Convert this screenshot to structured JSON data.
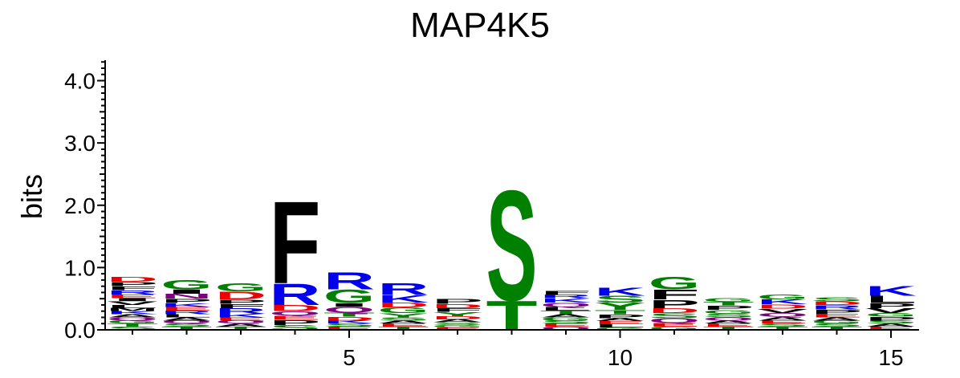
{
  "chart_data": {
    "type": "sequence-logo",
    "title": "MAP4K5",
    "ylabel": "bits",
    "ylim": [
      0,
      4.3
    ],
    "y_ticks": [
      "0.0",
      "1.0",
      "2.0",
      "3.0",
      "4.0"
    ],
    "x_ticks": [
      "5",
      "10",
      "15"
    ],
    "positions": [
      {
        "pos": 1,
        "letters": [
          [
            "S",
            0.05
          ],
          [
            "T",
            0.05
          ],
          [
            "G",
            0.05
          ],
          [
            "Q",
            0.05
          ],
          [
            "A",
            0.05
          ],
          [
            "K",
            0.05
          ],
          [
            "M",
            0.05
          ],
          [
            "L",
            0.05
          ],
          [
            "V",
            0.06
          ],
          [
            "I",
            0.05
          ],
          [
            "E",
            0.06
          ],
          [
            "R",
            0.07
          ],
          [
            "F",
            0.06
          ],
          [
            "P",
            0.07
          ],
          [
            "D",
            0.08
          ]
        ]
      },
      {
        "pos": 2,
        "letters": [
          [
            "T",
            0.05
          ],
          [
            "S",
            0.05
          ],
          [
            "Q",
            0.05
          ],
          [
            "A",
            0.05
          ],
          [
            "L",
            0.05
          ],
          [
            "R",
            0.06
          ],
          [
            "E",
            0.06
          ],
          [
            "K",
            0.06
          ],
          [
            "P",
            0.07
          ],
          [
            "N",
            0.08
          ],
          [
            "I",
            0.07
          ],
          [
            "G",
            0.15
          ]
        ]
      },
      {
        "pos": 3,
        "letters": [
          [
            "T",
            0.05
          ],
          [
            "A",
            0.05
          ],
          [
            "Q",
            0.05
          ],
          [
            "E",
            0.05
          ],
          [
            "K",
            0.06
          ],
          [
            "R",
            0.09
          ],
          [
            "F",
            0.07
          ],
          [
            "P",
            0.07
          ],
          [
            "D",
            0.13
          ],
          [
            "G",
            0.14
          ]
        ]
      },
      {
        "pos": 4,
        "letters": [
          [
            "S",
            0.08
          ],
          [
            "P",
            0.08
          ],
          [
            "E",
            0.07
          ],
          [
            "Q",
            0.07
          ],
          [
            "D",
            0.1
          ],
          [
            "R",
            0.35
          ],
          [
            "F",
            1.36
          ]
        ]
      },
      {
        "pos": 5,
        "letters": [
          [
            "E",
            0.05
          ],
          [
            "S",
            0.05
          ],
          [
            "K",
            0.05
          ],
          [
            "D",
            0.06
          ],
          [
            "T",
            0.07
          ],
          [
            "Q",
            0.09
          ],
          [
            "I",
            0.06
          ],
          [
            "G",
            0.22
          ],
          [
            "R",
            0.28
          ]
        ]
      },
      {
        "pos": 6,
        "letters": [
          [
            "T",
            0.05
          ],
          [
            "E",
            0.05
          ],
          [
            "A",
            0.05
          ],
          [
            "S",
            0.05
          ],
          [
            "Y",
            0.07
          ],
          [
            "G",
            0.09
          ],
          [
            "D",
            0.08
          ],
          [
            "K",
            0.12
          ],
          [
            "R",
            0.2
          ]
        ]
      },
      {
        "pos": 7,
        "letters": [
          [
            "E",
            0.04
          ],
          [
            "G",
            0.04
          ],
          [
            "S",
            0.04
          ],
          [
            "A",
            0.05
          ],
          [
            "D",
            0.05
          ],
          [
            "Y",
            0.07
          ],
          [
            "F",
            0.06
          ],
          [
            "D",
            0.07
          ],
          [
            "P",
            0.08
          ]
        ]
      },
      {
        "pos": 8,
        "letters": [
          [
            "T",
            0.48
          ],
          [
            "S",
            1.82
          ]
        ]
      },
      {
        "pos": 9,
        "letters": [
          [
            "Q",
            0.05
          ],
          [
            "E",
            0.05
          ],
          [
            "S",
            0.05
          ],
          [
            "G",
            0.05
          ],
          [
            "A",
            0.05
          ],
          [
            "T",
            0.06
          ],
          [
            "L",
            0.06
          ],
          [
            "Q",
            0.07
          ],
          [
            "K",
            0.07
          ],
          [
            "R",
            0.06
          ],
          [
            "F",
            0.06
          ]
        ]
      },
      {
        "pos": 10,
        "letters": [
          [
            "G",
            0.04
          ],
          [
            "L",
            0.05
          ],
          [
            "E",
            0.05
          ],
          [
            "A",
            0.05
          ],
          [
            "P",
            0.06
          ],
          [
            "T",
            0.07
          ],
          [
            "Y",
            0.12
          ],
          [
            "S",
            0.11
          ],
          [
            "K",
            0.14
          ]
        ]
      },
      {
        "pos": 11,
        "letters": [
          [
            "G",
            0.05
          ],
          [
            "E",
            0.06
          ],
          [
            "Q",
            0.08
          ],
          [
            "S",
            0.08
          ],
          [
            "D",
            0.08
          ],
          [
            "P",
            0.14
          ],
          [
            "F",
            0.16
          ],
          [
            "G",
            0.21
          ]
        ]
      },
      {
        "pos": 12,
        "letters": [
          [
            "T",
            0.05
          ],
          [
            "E",
            0.05
          ],
          [
            "A",
            0.05
          ],
          [
            "Q",
            0.05
          ],
          [
            "S",
            0.06
          ],
          [
            "G",
            0.06
          ],
          [
            "P",
            0.07
          ],
          [
            "T",
            0.06
          ],
          [
            "G",
            0.06
          ]
        ]
      },
      {
        "pos": 13,
        "letters": [
          [
            "T",
            0.05
          ],
          [
            "S",
            0.05
          ],
          [
            "E",
            0.05
          ],
          [
            "A",
            0.06
          ],
          [
            "Q",
            0.06
          ],
          [
            "V",
            0.07
          ],
          [
            "D",
            0.07
          ],
          [
            "K",
            0.08
          ],
          [
            "G",
            0.08
          ]
        ]
      },
      {
        "pos": 14,
        "letters": [
          [
            "T",
            0.05
          ],
          [
            "S",
            0.05
          ],
          [
            "G",
            0.05
          ],
          [
            "A",
            0.05
          ],
          [
            "E",
            0.06
          ],
          [
            "P",
            0.07
          ],
          [
            "R",
            0.07
          ],
          [
            "D",
            0.06
          ],
          [
            "S",
            0.07
          ]
        ]
      },
      {
        "pos": 15,
        "letters": [
          [
            "E",
            0.05
          ],
          [
            "A",
            0.05
          ],
          [
            "S",
            0.05
          ],
          [
            "P",
            0.06
          ],
          [
            "G",
            0.06
          ],
          [
            "V",
            0.08
          ],
          [
            "P",
            0.08
          ],
          [
            "L",
            0.12
          ],
          [
            "K",
            0.16
          ]
        ]
      }
    ],
    "colors": {
      "D": "#ee0000",
      "E": "#ee0000",
      "R": "#0000ee",
      "K": "#0000ee",
      "H": "#0000ee",
      "G": "#008000",
      "S": "#008000",
      "T": "#008000",
      "Y": "#008000",
      "C": "#008000",
      "N": "#800080",
      "Q": "#800080",
      "F": "#000000",
      "P": "#000000",
      "A": "#000000",
      "V": "#000000",
      "L": "#000000",
      "I": "#000000",
      "M": "#000000",
      "W": "#000000"
    }
  }
}
